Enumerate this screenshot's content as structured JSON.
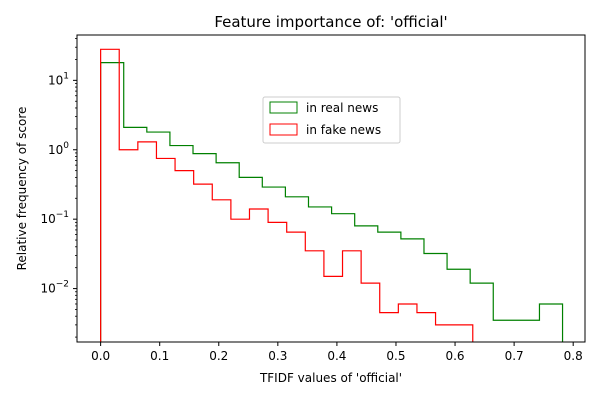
{
  "chart_data": {
    "type": "histogram-step",
    "title": "Feature importance of: 'official'",
    "xlabel": "TFIDF values of 'official'",
    "ylabel": "Relative frequency of score",
    "yscale": "log",
    "xlim": [
      -0.04,
      0.82
    ],
    "ylim": [
      0.0017,
      45
    ],
    "x_ticks": [
      0.0,
      0.1,
      0.2,
      0.3,
      0.4,
      0.5,
      0.6,
      0.7,
      0.8
    ],
    "x_tick_labels": [
      "0.0",
      "0.1",
      "0.2",
      "0.3",
      "0.4",
      "0.5",
      "0.6",
      "0.7",
      "0.8"
    ],
    "y_ticks": [
      0.01,
      0.1,
      1,
      10
    ],
    "y_tick_labels": [
      {
        "base": "10",
        "exp": "−2"
      },
      {
        "base": "10",
        "exp": "−1"
      },
      {
        "base": "10",
        "exp": "0"
      },
      {
        "base": "10",
        "exp": "1"
      }
    ],
    "legend": {
      "position": "upper-center"
    },
    "series": [
      {
        "name": "in real news",
        "color": "#008000",
        "edges": [
          0.0,
          0.0391,
          0.0782,
          0.1173,
          0.1564,
          0.1955,
          0.2346,
          0.2737,
          0.3128,
          0.3519,
          0.391,
          0.4301,
          0.4692,
          0.5083,
          0.5474,
          0.5865,
          0.6256,
          0.6647,
          0.7038,
          0.7429,
          0.782
        ],
        "values": [
          18,
          2.1,
          1.8,
          1.15,
          0.88,
          0.65,
          0.4,
          0.29,
          0.21,
          0.15,
          0.12,
          0.08,
          0.065,
          0.052,
          0.032,
          0.019,
          0.012,
          0.0035,
          0.0035,
          0.006
        ]
      },
      {
        "name": "in fake news",
        "color": "#ff0000",
        "edges": [
          0.0,
          0.0315,
          0.063,
          0.0945,
          0.126,
          0.1575,
          0.189,
          0.2205,
          0.252,
          0.2835,
          0.315,
          0.3465,
          0.378,
          0.4095,
          0.441,
          0.4725,
          0.504,
          0.5355,
          0.567,
          0.5985,
          0.63
        ],
        "values": [
          28,
          1.0,
          1.3,
          0.75,
          0.5,
          0.32,
          0.19,
          0.1,
          0.14,
          0.09,
          0.065,
          0.035,
          0.015,
          0.035,
          0.012,
          0.0045,
          0.006,
          0.0045,
          0.003,
          0.003
        ]
      }
    ]
  }
}
